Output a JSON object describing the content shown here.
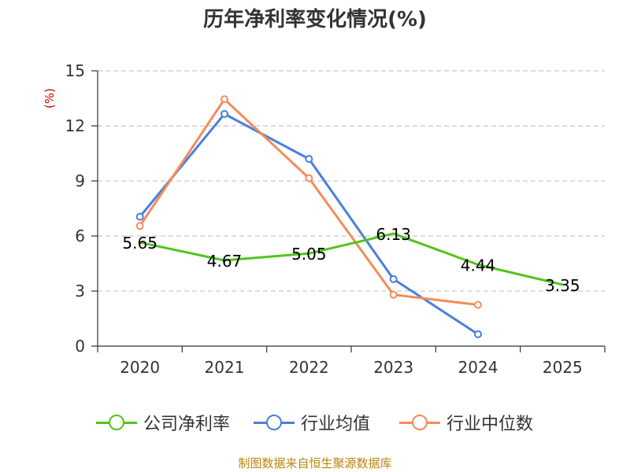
{
  "chart_data": {
    "type": "line",
    "title": "历年净利率变化情况(%)",
    "ylabel": "(%)",
    "xlabel": "",
    "categories": [
      "2020",
      "2021",
      "2022",
      "2023",
      "2024",
      "2025"
    ],
    "ylim": [
      0,
      15
    ],
    "yticks": [
      0,
      3,
      6,
      9,
      12,
      15
    ],
    "grid": true,
    "legend_position": "bottom",
    "series": [
      {
        "name": "公司净利率",
        "color": "#52c41a",
        "values": [
          5.65,
          4.67,
          5.05,
          6.13,
          4.44,
          3.35
        ],
        "labels": [
          "5.65",
          "4.67",
          "5.05",
          "6.13",
          "4.44",
          "3.35"
        ]
      },
      {
        "name": "行业均值",
        "color": "#4a7fdc",
        "values": [
          7.05,
          12.65,
          10.2,
          3.65,
          0.65,
          null
        ]
      },
      {
        "name": "行业中位数",
        "color": "#f28c5a",
        "values": [
          6.55,
          13.45,
          9.15,
          2.8,
          2.25,
          null
        ]
      }
    ]
  },
  "source": "制图数据来自恒生聚源数据库"
}
